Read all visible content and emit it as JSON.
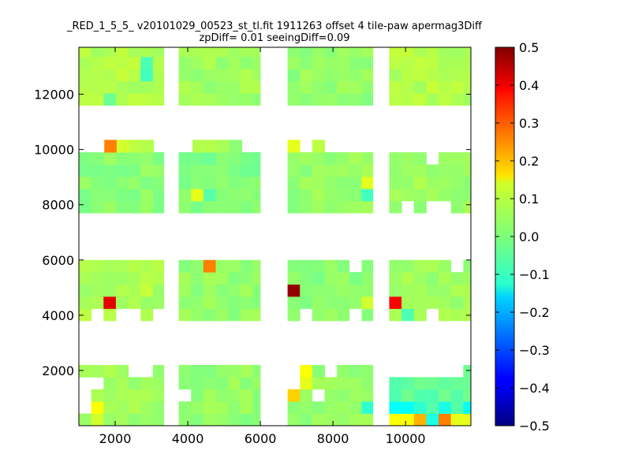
{
  "chart_data": {
    "type": "heatmap",
    "title": "_RED_1_5_5_ v20101029_00523_st_tl.fit 1911263 offset 4 tile-paw apermag3Diff",
    "subtitle": "zpDiff= 0.01 seeingDiff=0.09",
    "xlim": [
      1000,
      11800
    ],
    "ylim": [
      0,
      13700
    ],
    "x_ticks": [
      2000,
      4000,
      6000,
      8000,
      10000
    ],
    "y_ticks": [
      2000,
      4000,
      6000,
      8000,
      10000,
      12000
    ],
    "colormap": "jet",
    "colorbar": {
      "vmin": -0.5,
      "vmax": 0.5,
      "ticks": [
        "0.5",
        "0.4",
        "0.3",
        "0.2",
        "0.1",
        "0.0",
        "−0.1",
        "−0.2",
        "−0.3",
        "−0.4",
        "−0.5"
      ]
    },
    "cell_width": 340,
    "cell_height": 440,
    "blocks": [
      {
        "x": [
          1000,
          3340
        ],
        "y": [
          11600,
          13700
        ],
        "base": 0.05
      },
      {
        "x": [
          3750,
          6000
        ],
        "y": [
          11600,
          13700
        ],
        "base": 0.03
      },
      {
        "x": [
          6750,
          9100
        ],
        "y": [
          11600,
          13700
        ],
        "base": 0.02
      },
      {
        "x": [
          9550,
          11800
        ],
        "y": [
          11600,
          13700
        ],
        "base": 0.05
      },
      {
        "x": [
          1000,
          3340
        ],
        "y": [
          7700,
          9900
        ],
        "base": 0.01
      },
      {
        "x": [
          3750,
          6000
        ],
        "y": [
          7700,
          9900
        ],
        "base": 0.0
      },
      {
        "x": [
          6750,
          9100
        ],
        "y": [
          7700,
          9900
        ],
        "base": 0.02
      },
      {
        "x": [
          9550,
          11800
        ],
        "y": [
          7700,
          9900
        ],
        "base": 0.03
      },
      {
        "x": [
          1000,
          3340
        ],
        "y": [
          3800,
          6000
        ],
        "base": 0.04
      },
      {
        "x": [
          3750,
          6000
        ],
        "y": [
          3800,
          6000
        ],
        "base": 0.02
      },
      {
        "x": [
          6750,
          9100
        ],
        "y": [
          3800,
          6000
        ],
        "base": 0.01
      },
      {
        "x": [
          9550,
          11800
        ],
        "y": [
          3800,
          6000
        ],
        "base": 0.03
      },
      {
        "x": [
          1000,
          3340
        ],
        "y": [
          0,
          2200
        ],
        "base": 0.03
      },
      {
        "x": [
          3750,
          6000
        ],
        "y": [
          0,
          2200
        ],
        "base": 0.02
      },
      {
        "x": [
          6750,
          9100
        ],
        "y": [
          0,
          2200
        ],
        "base": 0.02
      },
      {
        "x": [
          9550,
          11800
        ],
        "y": [
          0,
          2200
        ],
        "base": -0.03
      }
    ],
    "extra_rows": [
      {
        "y": [
          9900,
          10350
        ],
        "cells": [
          {
            "x": 1700,
            "v": 0.25
          },
          {
            "x": 2040,
            "v": 0.08
          },
          {
            "x": 2380,
            "v": 0.06
          },
          {
            "x": 2720,
            "v": 0.05
          },
          {
            "x": 4130,
            "v": 0.05
          },
          {
            "x": 4470,
            "v": 0.05
          },
          {
            "x": 4810,
            "v": 0.04
          },
          {
            "x": 5150,
            "v": 0.01
          },
          {
            "x": 6750,
            "v": 0.1
          },
          {
            "x": 7430,
            "v": 0.06
          }
        ]
      }
    ],
    "holes": [
      {
        "x": 10700,
        "y": 9500
      },
      {
        "x": 10700,
        "y": 8000
      },
      {
        "x": 9900,
        "y": 8000
      },
      {
        "x": 11040,
        "y": 8000
      },
      {
        "x": 8750,
        "y": 5600
      },
      {
        "x": 11380,
        "y": 5600
      },
      {
        "x": 7090,
        "y": 4000
      },
      {
        "x": 8450,
        "y": 4000
      },
      {
        "x": 2040,
        "y": 4000
      },
      {
        "x": 2380,
        "y": 4000
      },
      {
        "x": 3060,
        "y": 4000
      },
      {
        "x": 10700,
        "y": 4000
      },
      {
        "x": 1000,
        "y": 1300
      },
      {
        "x": 1000,
        "y": 450
      },
      {
        "x": 1350,
        "y": 1750
      },
      {
        "x": 1000,
        "y": 1750
      },
      {
        "x": 2380,
        "y": 2100
      },
      {
        "x": 2720,
        "y": 2100
      },
      {
        "x": 3750,
        "y": 1300
      },
      {
        "x": 7430,
        "y": 1300
      },
      {
        "x": 7770,
        "y": 2100
      },
      {
        "x": 6750,
        "y": 1750
      },
      {
        "x": 6750,
        "y": 2100
      },
      {
        "x": 9550,
        "y": 2100
      },
      {
        "x": 9890,
        "y": 2100
      },
      {
        "x": 10230,
        "y": 2100
      },
      {
        "x": 11380,
        "y": 2100
      },
      {
        "x": 11040,
        "y": 2100
      },
      {
        "x": 10700,
        "y": 2100
      },
      {
        "x": 1350,
        "y": 4000
      }
    ],
    "hotspots": [
      {
        "x": 2900,
        "y": 13300,
        "v": -0.05
      },
      {
        "x": 2900,
        "y": 12500,
        "v": -0.06
      },
      {
        "x": 1700,
        "y": 12000,
        "v": -0.02
      },
      {
        "x": 4130,
        "y": 8200,
        "v": 0.1
      },
      {
        "x": 4470,
        "y": 8200,
        "v": -0.04
      },
      {
        "x": 8790,
        "y": 8700,
        "v": 0.1
      },
      {
        "x": 8790,
        "y": 8200,
        "v": -0.06
      },
      {
        "x": 4470,
        "y": 5850,
        "v": 0.25
      },
      {
        "x": 2720,
        "y": 5000,
        "v": 0.07
      },
      {
        "x": 1700,
        "y": 4600,
        "v": 0.4
      },
      {
        "x": 6750,
        "y": 4900,
        "v": 0.48
      },
      {
        "x": 9550,
        "y": 4600,
        "v": 0.38
      },
      {
        "x": 8790,
        "y": 4600,
        "v": 0.08
      },
      {
        "x": 9890,
        "y": 4200,
        "v": -0.05
      },
      {
        "x": 1350,
        "y": 500,
        "v": 0.12
      },
      {
        "x": 1350,
        "y": 100,
        "v": 0.08
      },
      {
        "x": 2900,
        "y": 2050,
        "v": 0.07
      },
      {
        "x": 7090,
        "y": 1950,
        "v": 0.12
      },
      {
        "x": 7090,
        "y": 1650,
        "v": 0.1
      },
      {
        "x": 6750,
        "y": 1050,
        "v": 0.17
      },
      {
        "x": 8790,
        "y": 550,
        "v": -0.08
      },
      {
        "x": 9550,
        "y": 550,
        "v": -0.12
      },
      {
        "x": 9890,
        "y": 550,
        "v": -0.12
      },
      {
        "x": 9550,
        "y": 100,
        "v": 0.12
      },
      {
        "x": 9890,
        "y": 100,
        "v": 0.12
      },
      {
        "x": 10230,
        "y": 100,
        "v": 0.2
      },
      {
        "x": 10570,
        "y": 100,
        "v": -0.1
      },
      {
        "x": 10910,
        "y": 100,
        "v": 0.25
      },
      {
        "x": 11250,
        "y": 100,
        "v": 0.1
      },
      {
        "x": 11590,
        "y": 100,
        "v": 0.1
      },
      {
        "x": 10910,
        "y": 550,
        "v": -0.1
      },
      {
        "x": 11590,
        "y": 550,
        "v": -0.12
      },
      {
        "x": 10230,
        "y": 550,
        "v": -0.08
      }
    ]
  }
}
